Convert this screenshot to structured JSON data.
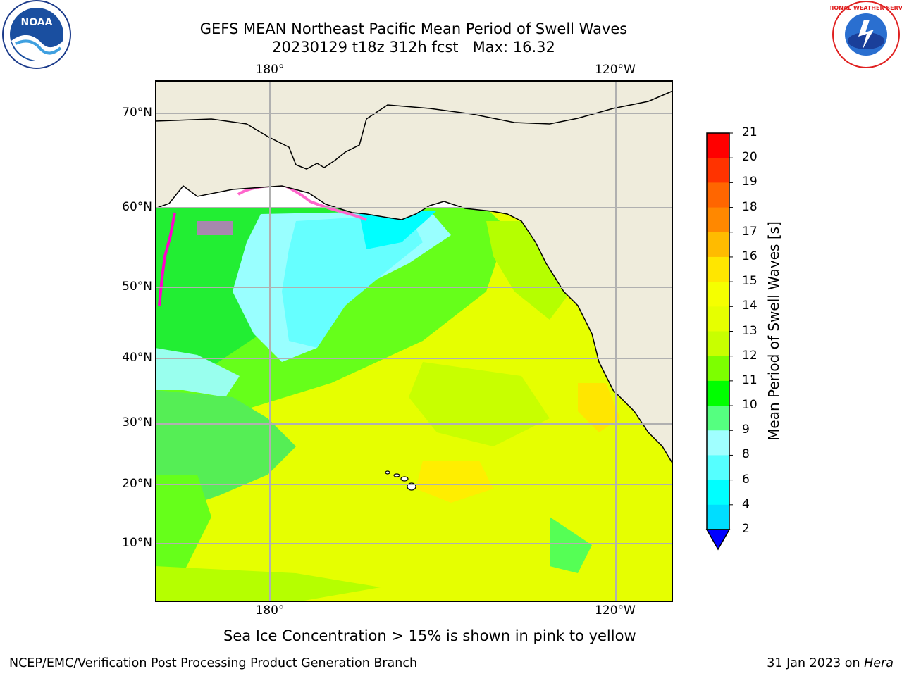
{
  "header": {
    "title_line1": "GEFS MEAN Northeast Pacific Mean Period of Swell Waves",
    "title_line2": "20230129 t18z 312h fcst   Max: 16.32"
  },
  "map": {
    "lon_labels_top": [
      "180°",
      "120°W"
    ],
    "lon_labels_bottom": [
      "180°",
      "120°W"
    ],
    "lat_labels": [
      "70°N",
      "60°N",
      "50°N",
      "40°N",
      "30°N",
      "20°N",
      "10°N"
    ],
    "land_color": "#efecdc",
    "ocean_base_color": "#e6ff00"
  },
  "colorbar": {
    "label": "Mean Period of Swell Waves [s]",
    "ticks": [
      "21",
      "20",
      "19",
      "18",
      "17",
      "16",
      "15",
      "14",
      "13",
      "12",
      "11",
      "10",
      "9",
      "8",
      "6",
      "4",
      "2"
    ],
    "colors": [
      "#ff0000",
      "#ff3300",
      "#ff6600",
      "#ff8800",
      "#ffbb00",
      "#ffe600",
      "#f5ff00",
      "#e6ff00",
      "#c8ff00",
      "#7dff00",
      "#00ff00",
      "#55ff80",
      "#a0ffff",
      "#55ffff",
      "#00ffff",
      "#00ddff",
      "#0066ff"
    ],
    "under_color": "#0000ff"
  },
  "caption": "Sea Ice Concentration > 15% is shown in pink to yellow",
  "footer": {
    "left": "NCEP/EMC/Verification Post Processing Product Generation Branch",
    "right_date": "31 Jan 2023 on",
    "right_host": "Hera"
  },
  "logos": {
    "noaa_text": "NOAA",
    "nws_text": "NATIONAL WEATHER SERVICE"
  }
}
